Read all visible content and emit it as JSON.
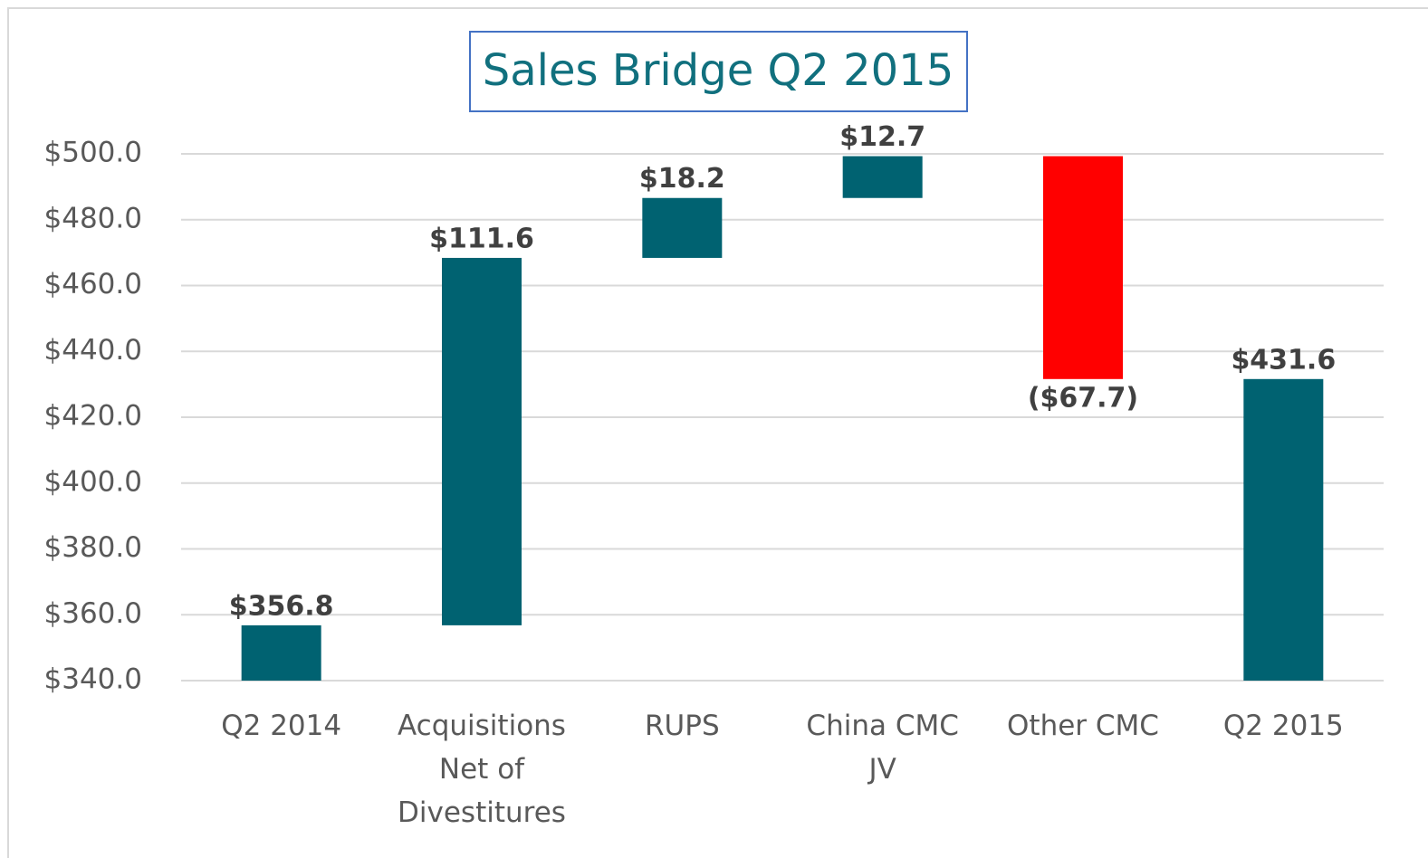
{
  "chart_data": {
    "type": "waterfall",
    "title": "Sales Bridge Q2 2015",
    "categories": [
      "Q2 2014",
      "Acquisitions Net of Divestitures",
      "RUPS",
      "China CMC JV",
      "Other CMC",
      "Q2 2015"
    ],
    "values": [
      356.8,
      111.6,
      18.2,
      12.7,
      -67.7,
      431.6
    ],
    "value_labels": [
      "$356.8",
      "$111.6",
      "$18.2",
      "$12.7",
      "($67.7)",
      "$431.6"
    ],
    "measures": [
      "absolute",
      "relative",
      "relative",
      "relative",
      "relative",
      "total"
    ],
    "color": "#006271",
    "decrease_color": "#ff0000",
    "ylim": [
      340,
      500
    ],
    "yticks": [
      {
        "value": 340,
        "label": "$340.0"
      },
      {
        "value": 360,
        "label": "$360.0"
      },
      {
        "value": 380,
        "label": "$380.0"
      },
      {
        "value": 400,
        "label": "$400.0"
      },
      {
        "value": 420,
        "label": "$420.0"
      },
      {
        "value": 440,
        "label": "$440.0"
      },
      {
        "value": 460,
        "label": "$460.0"
      },
      {
        "value": 480,
        "label": "$480.0"
      },
      {
        "value": 500,
        "label": "$500.0"
      }
    ],
    "grid": true
  }
}
